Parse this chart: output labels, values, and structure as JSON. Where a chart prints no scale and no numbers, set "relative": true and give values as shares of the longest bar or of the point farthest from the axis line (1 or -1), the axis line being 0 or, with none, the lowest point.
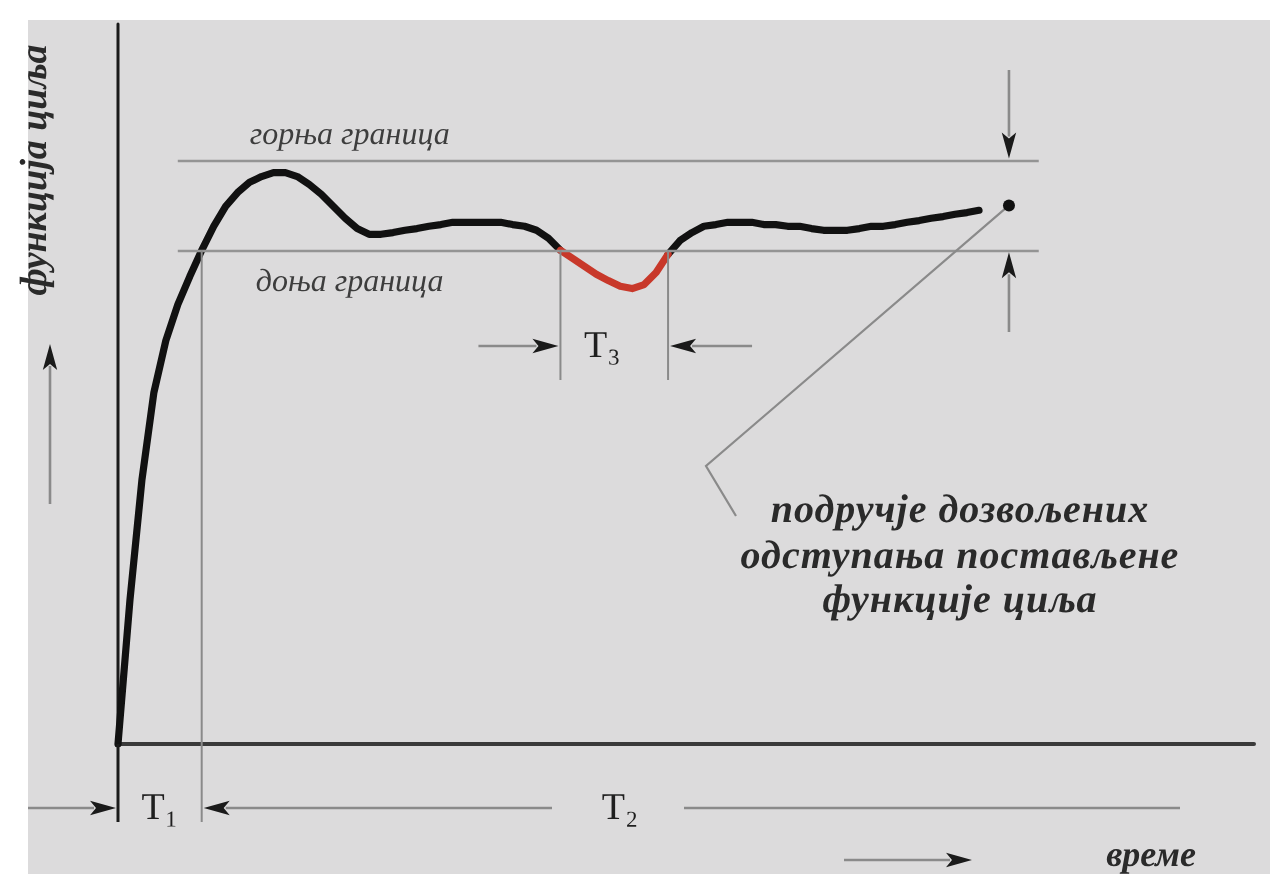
{
  "chart_data": {
    "type": "line",
    "relative": true,
    "xlabel": "време",
    "ylabel": "функција циља",
    "marker": "none",
    "categories": [
      null,
      null,
      null,
      null,
      null,
      null,
      null,
      null,
      null,
      null,
      null,
      null,
      null,
      null,
      null,
      null,
      null,
      null,
      null,
      null,
      null,
      null,
      null,
      null,
      null,
      null,
      null,
      null,
      null,
      null,
      null,
      null,
      null,
      null,
      null,
      null,
      null,
      null,
      null,
      null,
      null,
      null,
      null,
      null,
      null,
      null,
      null,
      null,
      null,
      null,
      null,
      null,
      null,
      null,
      null,
      null,
      null,
      null,
      null,
      null,
      null,
      null,
      null,
      null,
      null,
      null,
      null,
      null,
      null,
      null,
      null,
      null,
      null,
      null,
      null,
      null,
      null,
      null,
      null,
      null,
      null,
      null,
      null,
      null,
      null,
      null,
      null,
      null,
      null,
      null,
      null,
      null,
      null,
      null,
      null,
      null
    ],
    "series": [
      {
        "color": "#111111",
        "values": [
          0,
          0.252,
          0.462,
          0.615,
          0.706,
          0.769,
          0.818,
          0.864,
          0.906,
          0.941,
          0.965,
          0.983,
          0.993,
          1,
          1,
          0.993,
          0.979,
          0.962,
          0.941,
          0.92,
          0.902,
          0.892,
          0.892,
          0.895,
          0.899,
          0.902,
          0.906,
          0.909,
          0.913,
          0.913,
          0.913,
          0.913,
          0.913,
          0.909,
          0.906,
          0.899,
          0.885,
          0.864,
          null,
          null,
          null,
          null,
          null,
          null,
          null,
          null,
          0.857,
          0.881,
          0.895,
          0.906,
          0.909,
          0.913,
          0.913,
          0.913,
          0.909,
          0.909,
          0.906,
          0.906,
          0.902,
          0.899,
          0.899,
          0.899,
          0.902,
          0.906,
          0.906,
          0.909,
          0.913,
          0.916,
          0.92,
          0.923,
          0.927,
          0.93,
          0.934,
          null,
          null,
          null,
          null,
          null,
          null,
          null,
          null,
          null,
          null,
          null,
          null,
          null,
          null,
          null,
          null,
          null,
          null,
          null,
          null,
          null,
          null,
          null
        ]
      },
      {
        "color": "#c8382a",
        "values": [
          null,
          null,
          null,
          null,
          null,
          null,
          null,
          null,
          null,
          null,
          null,
          null,
          null,
          null,
          null,
          null,
          null,
          null,
          null,
          null,
          null,
          null,
          null,
          null,
          null,
          null,
          null,
          null,
          null,
          null,
          null,
          null,
          null,
          null,
          null,
          null,
          null,
          0.864,
          0.85,
          0.836,
          0.822,
          0.811,
          0.801,
          0.797,
          0.804,
          0.825,
          0.857,
          null,
          null,
          null,
          null,
          null,
          null,
          null,
          null,
          null,
          null,
          null,
          null,
          null,
          null,
          null,
          null,
          null,
          null,
          null,
          null,
          null,
          null,
          null,
          null,
          null,
          null,
          null,
          null,
          null,
          null,
          null,
          null,
          null,
          null,
          null,
          null,
          null,
          null,
          null,
          null,
          null,
          null,
          null,
          null,
          null,
          null,
          null,
          null,
          null
        ]
      }
    ],
    "ref_lines": [
      {
        "axis": "y",
        "value": 1.021,
        "label": "горња граница",
        "color": "#949494"
      },
      {
        "axis": "y",
        "value": 0.864,
        "label": "доња граница",
        "color": "#949494"
      }
    ],
    "annotations": [
      "T₁",
      "T₂",
      "T₃",
      "подручје дозвољених одступања постављене функције циља"
    ]
  }
}
